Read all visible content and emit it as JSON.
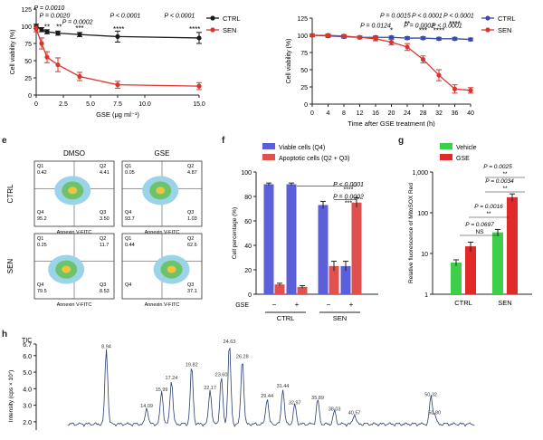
{
  "chart_data": [
    {
      "panel": "",
      "type": "line",
      "xlabel": "GSE (μg ml⁻¹)",
      "ylabel": "Cell viability (%)",
      "xticks": [
        "0",
        "2.5",
        "5.0",
        "7.5",
        "10.0",
        "15.0"
      ],
      "yticks": [
        "0",
        "25",
        "50",
        "75",
        "100",
        "125"
      ],
      "xlim": [
        0,
        15
      ],
      "ylim": [
        0,
        125
      ],
      "series": [
        {
          "name": "CTRL",
          "color": "#1a1a1a",
          "x": [
            0,
            0.5,
            1,
            2,
            4,
            7.5,
            15
          ],
          "y": [
            100,
            95,
            92,
            90,
            88,
            85,
            83
          ],
          "err": [
            3,
            3,
            3,
            3,
            3,
            8,
            8
          ]
        },
        {
          "name": "SEN",
          "color": "#d9362b",
          "x": [
            0,
            0.5,
            1,
            2,
            4,
            7.5,
            15
          ],
          "y": [
            96,
            75,
            55,
            44,
            27,
            15,
            13
          ],
          "err": [
            4,
            8,
            8,
            10,
            6,
            5,
            5
          ]
        }
      ],
      "annotations": [
        {
          "text": "P = 0.0010",
          "x": 1.2,
          "y": 126
        },
        {
          "text": "P = 0.0020",
          "x": 1.7,
          "y": 115
        },
        {
          "text": "P = 0.0002",
          "x": 3.8,
          "y": 106
        },
        {
          "text": "P < 0.0001",
          "x": 8.2,
          "y": 115
        },
        {
          "text": "P < 0.0001",
          "x": 13.2,
          "y": 115
        },
        {
          "text": "**",
          "x": 1.0,
          "y": 98
        },
        {
          "text": "**",
          "x": 2.1,
          "y": 98
        },
        {
          "text": "***",
          "x": 4.0,
          "y": 96
        },
        {
          "text": "****",
          "x": 7.6,
          "y": 95
        },
        {
          "text": "****",
          "x": 14.6,
          "y": 95
        }
      ]
    },
    {
      "panel": "",
      "type": "line",
      "xlabel": "Time after GSE treatment (h)",
      "ylabel": "Cell viability (%)",
      "xticks": [
        "0",
        "4",
        "8",
        "12",
        "16",
        "20",
        "24",
        "28",
        "32",
        "36",
        "40"
      ],
      "yticks": [
        "0",
        "25",
        "50",
        "75",
        "100",
        "125"
      ],
      "xlim": [
        0,
        40
      ],
      "ylim": [
        0,
        125
      ],
      "series": [
        {
          "name": "CTRL",
          "color": "#3b4aa8",
          "x": [
            0,
            4,
            8,
            12,
            16,
            20,
            24,
            28,
            32,
            36,
            40
          ],
          "y": [
            100,
            99,
            98,
            97,
            97,
            97,
            96,
            96,
            95,
            95,
            94
          ],
          "err": [
            2,
            2,
            2,
            2,
            2,
            2,
            2,
            2,
            2,
            2,
            2
          ]
        },
        {
          "name": "SEN",
          "color": "#d9362b",
          "x": [
            0,
            4,
            8,
            12,
            16,
            20,
            24,
            28,
            32,
            36,
            40
          ],
          "y": [
            100,
            100,
            99,
            97,
            95,
            90,
            83,
            65,
            42,
            22,
            20
          ],
          "err": [
            2,
            2,
            2,
            2,
            3,
            4,
            5,
            5,
            8,
            6,
            4
          ]
        }
      ],
      "annotations": [
        {
          "text": "P = 0.0015",
          "x": 21,
          "y": 128
        },
        {
          "text": "P < 0.0001",
          "x": 29,
          "y": 128
        },
        {
          "text": "P < 0.0001",
          "x": 37,
          "y": 128
        },
        {
          "text": "P = 0.0124",
          "x": 16,
          "y": 114
        },
        {
          "text": "P = 0.0002",
          "x": 27,
          "y": 114
        },
        {
          "text": "P < 0.0001",
          "x": 34,
          "y": 114
        },
        {
          "text": "*",
          "x": 20,
          "y": 106
        },
        {
          "text": "**",
          "x": 24,
          "y": 116
        },
        {
          "text": "***",
          "x": 28,
          "y": 106
        },
        {
          "text": "****",
          "x": 32,
          "y": 106
        },
        {
          "text": "****",
          "x": 36,
          "y": 116
        }
      ]
    },
    {
      "panel": "e",
      "type": "scatter",
      "columns": [
        "DMSO",
        "GSE"
      ],
      "rows": [
        "CTRL",
        "SEN"
      ],
      "xlabel": "Annexin V-FITC",
      "plots": [
        {
          "row": "CTRL",
          "col": "DMSO",
          "q": [
            "Q1\n0.42",
            "Q2\n4.41",
            "Q4\n95.2",
            "Q3\n3.50"
          ],
          "cluster": [
            0.48,
            0.45
          ]
        },
        {
          "row": "CTRL",
          "col": "GSE",
          "q": [
            "Q1\n0.05",
            "Q2\n4.87",
            "Q4\n93.7",
            "Q3\n1.03"
          ],
          "cluster": [
            0.48,
            0.45
          ]
        },
        {
          "row": "SEN",
          "col": "DMSO",
          "q": [
            "Q1\n0.25",
            "Q2\n11.7",
            "Q4\n79.5",
            "Q3\n8.53"
          ],
          "cluster": [
            0.4,
            0.55
          ]
        },
        {
          "row": "SEN",
          "col": "GSE",
          "q": [
            "Q1\n0.44",
            "Q2\n62.6",
            "Q4\n",
            "Q3\n37.1"
          ],
          "cluster": [
            0.62,
            0.55
          ]
        }
      ]
    },
    {
      "panel": "f",
      "type": "bar",
      "ylabel": "Cell percentage (%)",
      "yticks": [
        "0",
        "20",
        "40",
        "60",
        "80",
        "100"
      ],
      "ylim": [
        0,
        100
      ],
      "legend": [
        "Viable cells (Q4)",
        "Apoptotic cells (Q2 + Q3)"
      ],
      "series": [
        {
          "name": "Viable cells (Q4)",
          "color": "#5b5fd8",
          "values": [
            90,
            90,
            73,
            23
          ],
          "err": [
            1,
            1,
            3,
            4
          ]
        },
        {
          "name": "Apoptotic cells (Q2 + Q3)",
          "color": "#e0514d",
          "values": [
            8,
            6,
            23,
            75
          ],
          "err": [
            1,
            1,
            4,
            4
          ]
        }
      ],
      "gse": [
        "−",
        "+",
        "−",
        "+"
      ],
      "gse_label": "GSE",
      "groups": [
        "CTRL",
        "SEN"
      ],
      "annotations": [
        {
          "text": "P < 0.0001",
          "y": 88
        },
        {
          "text": "****",
          "y": 84
        },
        {
          "text": "P = 0.0002",
          "y": 78
        },
        {
          "text": "***",
          "y": 73
        }
      ]
    },
    {
      "panel": "g",
      "type": "bar",
      "ylabel": "Relative fluorescence of MitoSOX Red",
      "yscale": "log",
      "yticks": [
        "1",
        "10",
        "100",
        "1,000"
      ],
      "ylim": [
        1,
        1000
      ],
      "legend": [
        "Vehicle",
        "GSE"
      ],
      "series": [
        {
          "name": "Vehicle",
          "color": "#3ecf4a",
          "values": [
            6,
            33
          ],
          "err": [
            1,
            6
          ]
        },
        {
          "name": "GSE",
          "color": "#e02a2a",
          "values": [
            15,
            240
          ],
          "err": [
            4,
            50
          ]
        }
      ],
      "groups": [
        "CTRL",
        "SEN"
      ],
      "annotations": [
        {
          "text": "P = 0.0025",
          "level": 1
        },
        {
          "text": "**",
          "level": 2
        },
        {
          "text": "P = 0.0034",
          "level": 3
        },
        {
          "text": "**",
          "level": 4
        },
        {
          "text": "P = 0.0016",
          "level": 5
        },
        {
          "text": "**",
          "level": 6
        },
        {
          "text": "P = 0.0697",
          "level": 7
        },
        {
          "text": "NS",
          "level": 8
        }
      ]
    },
    {
      "panel": "h",
      "type": "line",
      "title": "TIC",
      "ylabel": "Intensity (cps × 10⁷)",
      "yticks": [
        "2.0",
        "3.0",
        "4.0",
        "5.0",
        "6.0",
        "6.7"
      ],
      "peaks": [
        {
          "label": "8.94",
          "x": 8.94,
          "y": 6.3
        },
        {
          "label": "14.09",
          "x": 14.09,
          "y": 2.7
        },
        {
          "label": "15.99",
          "x": 15.99,
          "y": 3.7
        },
        {
          "label": "17.24",
          "x": 17.24,
          "y": 4.4
        },
        {
          "label": "19.82",
          "x": 19.82,
          "y": 5.2
        },
        {
          "label": "22.17",
          "x": 22.17,
          "y": 3.8
        },
        {
          "label": "23.60",
          "x": 23.6,
          "y": 4.6
        },
        {
          "label": "24.63",
          "x": 24.63,
          "y": 6.6
        },
        {
          "label": "26.28",
          "x": 26.28,
          "y": 5.7
        },
        {
          "label": "29.44",
          "x": 29.44,
          "y": 3.3
        },
        {
          "label": "31.44",
          "x": 31.44,
          "y": 3.9
        },
        {
          "label": "32.97",
          "x": 32.97,
          "y": 2.9
        },
        {
          "label": "35.89",
          "x": 35.89,
          "y": 3.2
        },
        {
          "label": "38.03",
          "x": 38.03,
          "y": 2.5
        },
        {
          "label": "40.57",
          "x": 40.57,
          "y": 2.3
        },
        {
          "label": "50.32",
          "x": 50.32,
          "y": 3.4
        },
        {
          "label": "50.80",
          "x": 50.8,
          "y": 2.3
        }
      ]
    }
  ],
  "panel_letters": {
    "e": "e",
    "f": "f",
    "g": "g",
    "h": "h"
  }
}
